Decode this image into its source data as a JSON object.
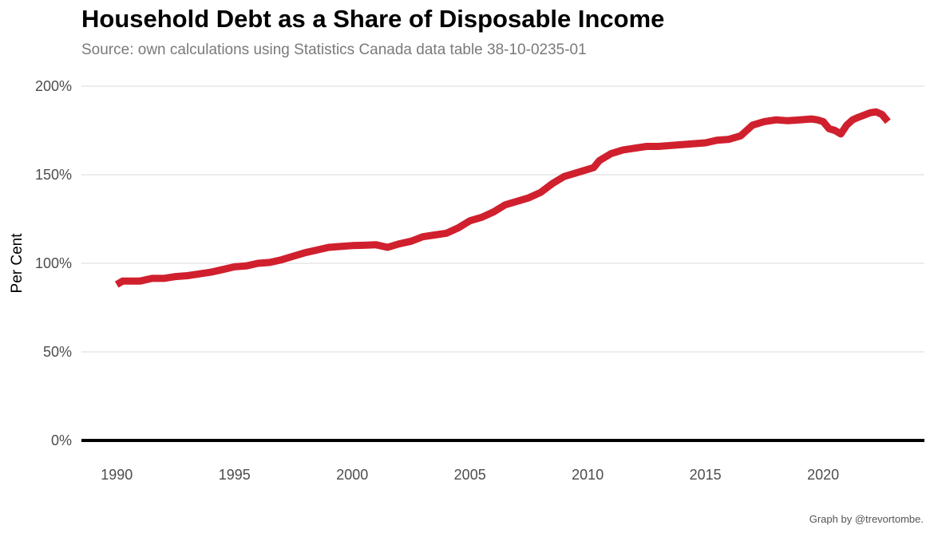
{
  "header": {
    "title": "Household Debt as a Share of Disposable Income",
    "subtitle": "Source: own calculations using Statistics Canada data table 38-10-0235-01"
  },
  "footer": {
    "caption": "Graph by @trevortombe."
  },
  "colors": {
    "line": "#d0202e",
    "grid": "#e6e6e6",
    "zero_line": "#000000"
  },
  "chart_data": {
    "type": "line",
    "title": "Household Debt as a Share of Disposable Income",
    "subtitle": "Source: own calculations using Statistics Canada data table 38-10-0235-01",
    "xlabel": "",
    "ylabel": "Per Cent",
    "xlim": [
      1988.5,
      2024.3
    ],
    "ylim": [
      0,
      200
    ],
    "x_ticks": [
      1990,
      1995,
      2000,
      2005,
      2010,
      2015,
      2020
    ],
    "x_tick_labels": [
      "1990",
      "1995",
      "2000",
      "2005",
      "2010",
      "2015",
      "2020"
    ],
    "y_ticks": [
      0,
      50,
      100,
      150,
      200
    ],
    "y_tick_labels": [
      "0%",
      "50%",
      "100%",
      "150%",
      "200%"
    ],
    "grid": true,
    "legend": "none",
    "series": [
      {
        "x": [
          1990.0,
          1990.25,
          1990.5,
          1991.0,
          1991.5,
          1992.0,
          1992.5,
          1993.0,
          1993.5,
          1994.0,
          1994.5,
          1995.0,
          1995.5,
          1996.0,
          1996.5,
          1997.0,
          1997.5,
          1998.0,
          1998.5,
          1999.0,
          1999.5,
          2000.0,
          2000.5,
          2001.0,
          2001.5,
          2002.0,
          2002.5,
          2003.0,
          2003.5,
          2004.0,
          2004.5,
          2005.0,
          2005.5,
          2006.0,
          2006.5,
          2007.0,
          2007.5,
          2008.0,
          2008.5,
          2009.0,
          2009.5,
          2010.0,
          2010.25,
          2010.5,
          2011.0,
          2011.5,
          2012.0,
          2012.5,
          2013.0,
          2013.5,
          2014.0,
          2014.5,
          2015.0,
          2015.5,
          2016.0,
          2016.5,
          2017.0,
          2017.5,
          2018.0,
          2018.5,
          2019.0,
          2019.5,
          2019.75,
          2020.0,
          2020.25,
          2020.5,
          2020.75,
          2021.0,
          2021.25,
          2021.5,
          2022.0,
          2022.25,
          2022.5,
          2022.75
        ],
        "values": [
          88,
          90,
          90,
          90,
          91.5,
          91.5,
          92.5,
          93,
          94,
          95,
          96.5,
          98,
          98.5,
          100,
          100.5,
          102,
          104,
          106,
          107.5,
          109,
          109.5,
          110,
          110.2,
          110.5,
          109,
          111,
          112.5,
          115,
          116,
          117,
          120,
          124,
          126,
          129,
          133,
          135,
          137,
          140,
          145,
          149,
          151,
          153,
          154,
          158,
          162,
          164,
          165,
          166,
          166,
          166.5,
          167,
          167.5,
          168,
          169.5,
          170,
          172,
          178,
          180,
          181,
          180.5,
          181,
          181.5,
          181,
          180,
          176,
          175,
          173,
          178,
          181,
          182.5,
          185,
          185.5,
          184,
          180
        ]
      }
    ]
  }
}
